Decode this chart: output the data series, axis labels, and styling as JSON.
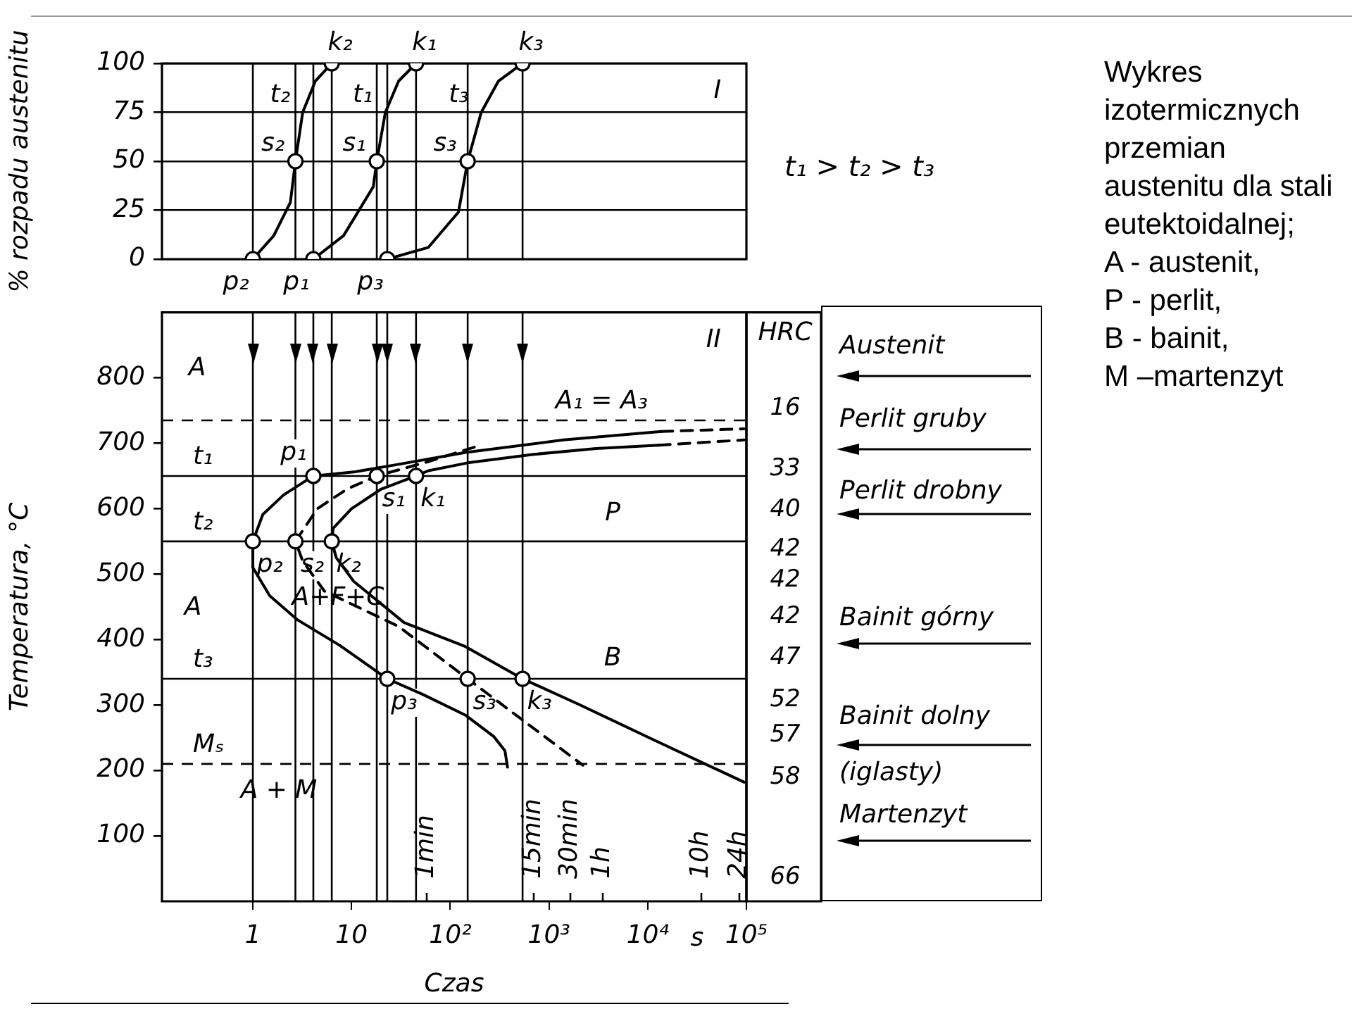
{
  "chart_data": [
    {
      "type": "line",
      "title": "I",
      "ylabel": "% rozpadu austenitu",
      "log": "x",
      "xlim": [
        0.12,
        100000
      ],
      "ylim": [
        0,
        100
      ],
      "yticks": [
        0,
        25,
        50,
        75,
        100
      ],
      "grid": "y",
      "tick_labels": "y",
      "series": [
        {
          "type": "line",
          "color": "#000000",
          "line_style": "solid",
          "marker": "none",
          "x": [
            1,
            1.63,
            2.4,
            2.7,
            3.2,
            4.3,
            6.3
          ],
          "values": [
            0,
            12,
            29,
            50,
            75,
            91,
            100
          ]
        },
        {
          "type": "line",
          "color": "#000000",
          "line_style": "solid",
          "marker": "none",
          "x": [
            4.1,
            8.3,
            16.6,
            18,
            22,
            30,
            45
          ],
          "values": [
            0,
            12,
            37,
            50,
            75,
            91,
            100
          ]
        },
        {
          "type": "line",
          "color": "#000000",
          "line_style": "solid",
          "marker": "none",
          "x": [
            23,
            60,
            121,
            150,
            206,
            308,
            540
          ],
          "values": [
            0,
            6,
            24,
            50,
            75,
            91,
            100
          ]
        },
        {
          "type": "scatter",
          "color": "#000000",
          "marker": "circle",
          "x": [
            1,
            2.7,
            6.3,
            4.1,
            18,
            45,
            23,
            150,
            540
          ],
          "values": [
            0,
            50,
            100,
            0,
            50,
            100,
            0,
            50,
            100
          ]
        }
      ],
      "ref_lines": [
        {
          "axis": "x",
          "value": 1
        },
        {
          "axis": "x",
          "value": 2.7
        },
        {
          "axis": "x",
          "value": 6.3
        },
        {
          "axis": "x",
          "value": 4.1
        },
        {
          "axis": "x",
          "value": 18
        },
        {
          "axis": "x",
          "value": 45
        },
        {
          "axis": "x",
          "value": 23
        },
        {
          "axis": "x",
          "value": 150
        },
        {
          "axis": "x",
          "value": 540
        }
      ],
      "annotations": [
        "t₁ > t₂ > t₃",
        "Wykres izotermicznych przemian austenitu dla stali eutektoidalnej;",
        "A - austenit,",
        "P - perlit,",
        "B - bainit,",
        "M –martenzyt",
        {
          "text": "t₂",
          "x": 3.2,
          "y": 75
        },
        {
          "text": "t₁",
          "x": 22,
          "y": 75
        },
        {
          "text": "t₃",
          "x": 206,
          "y": 75
        },
        {
          "text": "s₂",
          "x": 2.7,
          "y": 50
        },
        {
          "text": "s₁",
          "x": 18,
          "y": 50
        },
        {
          "text": "s₃",
          "x": 150,
          "y": 50
        },
        {
          "text": "k₂",
          "x": 6.3,
          "y": 100
        },
        {
          "text": "k₁",
          "x": 45,
          "y": 100
        },
        {
          "text": "k₃",
          "x": 540,
          "y": 100
        },
        {
          "text": "p₂",
          "x": 1,
          "y": 0
        },
        {
          "text": "p₁",
          "x": 4.1,
          "y": 0
        },
        {
          "text": "p₃",
          "x": 23,
          "y": 0
        }
      ]
    },
    {
      "type": "line",
      "title": "II",
      "xlabel": "Czas",
      "ylabel": "Temperatura, °C",
      "log": "x",
      "xlim": [
        0.12,
        100000
      ],
      "xticks": [
        1,
        10,
        {
          "value": 100,
          "label": "10²"
        },
        {
          "value": 1000,
          "label": "10³"
        },
        {
          "value": 10000,
          "label": "10⁴"
        },
        {
          "value": 100000,
          "label": "10⁵"
        }
      ],
      "ylim": [
        0,
        900
      ],
      "yticks": [
        100,
        200,
        300,
        400,
        500,
        600,
        700,
        800
      ],
      "grid": false,
      "series": [
        {
          "type": "line",
          "color": "#000000",
          "line_style": "solid",
          "marker": "none",
          "x": [
            13800,
            1400,
            144,
            28,
            10.5,
            4.1,
            2.05,
            1.26,
            1,
            1,
            1.48,
            2.84,
            7.6,
            23,
            53,
            144,
            275,
            358,
            380
          ],
          "values": [
            718,
            705,
            686,
            667,
            656,
            650,
            621,
            591,
            550,
            510,
            467,
            430,
            391,
            340,
            316,
            284,
            252,
            230,
            205
          ]
        },
        {
          "type": "line",
          "color": "#000000",
          "line_style": "solid",
          "marker": "none",
          "x": [
            13000,
            3000,
            700,
            150,
            60,
            45,
            20,
            10,
            6.5,
            6.3,
            7,
            10.5,
            34,
            139,
            540,
            2000,
            11400,
            95000
          ],
          "values": [
            697,
            692,
            683,
            670,
            658,
            650,
            630,
            600,
            570,
            550,
            525,
            489,
            426,
            390,
            340,
            301,
            247,
            182
          ]
        },
        {
          "type": "line",
          "color": "#000000",
          "line_style": "dashed",
          "marker": "none",
          "x": [
            175,
            60,
            18,
            9,
            4.5,
            2.7,
            3.2,
            5.3,
            30,
            150,
            2200
          ],
          "values": [
            694,
            672,
            650,
            630,
            600,
            550,
            520,
            474,
            420,
            340,
            208
          ]
        },
        {
          "type": "line",
          "color": "#000000",
          "line_style": "dashed",
          "marker": "none",
          "x": [
            13800,
            95000
          ],
          "values": [
            718,
            722
          ]
        },
        {
          "type": "line",
          "color": "#000000",
          "line_style": "dashed",
          "marker": "none",
          "x": [
            13000,
            95000
          ],
          "values": [
            697,
            705
          ]
        },
        {
          "type": "scatter",
          "color": "#000000",
          "marker": "circle",
          "x": [
            1,
            2.7,
            6.3,
            4.1,
            18,
            45,
            23,
            150,
            540
          ],
          "values": [
            550,
            550,
            550,
            650,
            650,
            650,
            340,
            340,
            340
          ]
        }
      ],
      "ref_lines": [
        {
          "axis": "y",
          "value": 735,
          "label": "A₁ = A₃",
          "line_style": "dashed"
        },
        {
          "axis": "y",
          "value": 650,
          "label": "t₁"
        },
        {
          "axis": "y",
          "value": 550,
          "label": "t₂"
        },
        {
          "axis": "y",
          "value": 340,
          "label": "t₃"
        },
        {
          "axis": "y",
          "value": 210,
          "label": "Mₛ",
          "line_style": "dashed"
        },
        {
          "axis": "x",
          "value": 1
        },
        {
          "axis": "x",
          "value": 2.7
        },
        {
          "axis": "x",
          "value": 6.3
        },
        {
          "axis": "x",
          "value": 4.1
        },
        {
          "axis": "x",
          "value": 18
        },
        {
          "axis": "x",
          "value": 45
        },
        {
          "axis": "x",
          "value": 23
        },
        {
          "axis": "x",
          "value": 150
        },
        {
          "axis": "x",
          "value": 540
        }
      ],
      "annotations": [
        "s",
        "Austenit",
        "Perlit gruby",
        "Perlit drobny",
        "Bainit górny",
        "Bainit dolny",
        "(iglasty)",
        "Martenzyt",
        "HRC",
        "16",
        "33",
        "40",
        "42",
        "42",
        "42",
        "47",
        "52",
        "57",
        "58",
        "66",
        "A",
        "A",
        "P",
        "B",
        "A+F+C",
        "A + M",
        "1min",
        "15min",
        "30min",
        "1h",
        "10h",
        "24h",
        {
          "text": "s₁",
          "x": 18,
          "y": 650
        },
        {
          "text": "p₁",
          "x": 4.1,
          "y": 650
        },
        {
          "text": "k₁",
          "x": 45,
          "y": 650
        },
        {
          "text": "p₂",
          "x": 1,
          "y": 550
        },
        {
          "text": "s₂",
          "x": 2.7,
          "y": 550
        },
        {
          "text": "k₂",
          "x": 6.3,
          "y": 550
        },
        {
          "text": "p₃",
          "x": 23,
          "y": 340
        },
        {
          "text": "s₃",
          "x": 150,
          "y": 340
        },
        {
          "text": "k₃",
          "x": 540,
          "y": 340
        }
      ]
    }
  ]
}
